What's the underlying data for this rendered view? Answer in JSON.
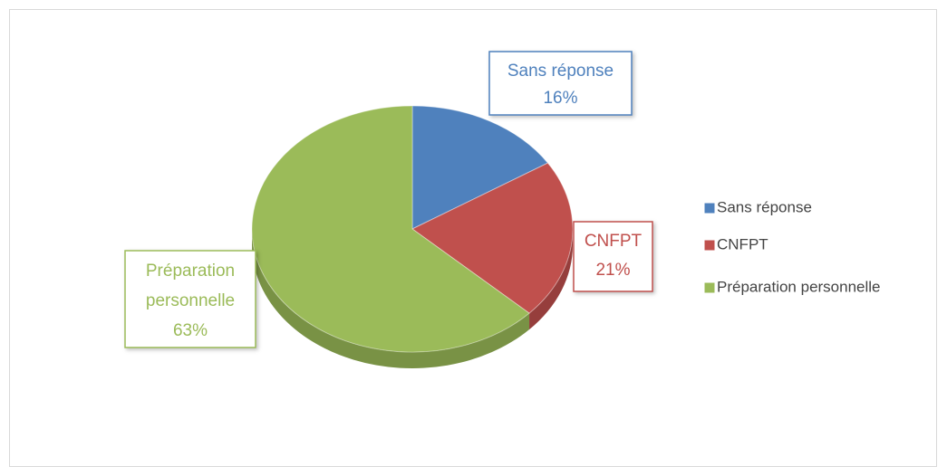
{
  "chart_data": {
    "type": "pie",
    "categories": [
      "Sans réponse",
      "CNFPT",
      "Préparation personnelle"
    ],
    "values": [
      16,
      21,
      63
    ],
    "value_labels": [
      "16%",
      "21%",
      "63%"
    ],
    "colors": [
      "#4f81bd",
      "#c0504d",
      "#9bbb59"
    ],
    "legend": "right"
  }
}
